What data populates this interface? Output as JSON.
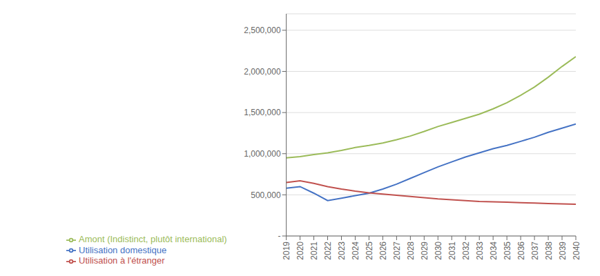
{
  "chart_data": {
    "type": "line",
    "x": [
      2019,
      2020,
      2021,
      2022,
      2023,
      2024,
      2025,
      2026,
      2027,
      2028,
      2029,
      2030,
      2031,
      2032,
      2033,
      2034,
      2035,
      2036,
      2037,
      2038,
      2039,
      2040
    ],
    "series": [
      {
        "name": "Utilisation domestique",
        "color": "#4472C4",
        "values": [
          580000,
          600000,
          520000,
          430000,
          460000,
          490000,
          520000,
          570000,
          630000,
          700000,
          770000,
          840000,
          900000,
          960000,
          1010000,
          1060000,
          1100000,
          1150000,
          1200000,
          1260000,
          1310000,
          1360000
        ]
      },
      {
        "name": "Utilisation à l'étranger",
        "color": "#C0504D",
        "values": [
          650000,
          670000,
          640000,
          600000,
          570000,
          545000,
          525000,
          510000,
          495000,
          480000,
          465000,
          450000,
          440000,
          430000,
          420000,
          415000,
          410000,
          405000,
          400000,
          395000,
          390000,
          385000
        ]
      },
      {
        "name": "Amont (Indistinct, plutôt international)",
        "color": "#9BBB59",
        "values": [
          950000,
          965000,
          990000,
          1010000,
          1040000,
          1075000,
          1100000,
          1130000,
          1170000,
          1215000,
          1270000,
          1330000,
          1380000,
          1430000,
          1480000,
          1545000,
          1620000,
          1710000,
          1810000,
          1930000,
          2060000,
          2180000
        ]
      }
    ],
    "xlim": [
      2019,
      2040
    ],
    "xticks": [
      2019,
      2020,
      2021,
      2022,
      2023,
      2024,
      2025,
      2026,
      2027,
      2028,
      2029,
      2030,
      2031,
      2032,
      2033,
      2034,
      2035,
      2036,
      2037,
      2038,
      2039,
      2040
    ],
    "ylim": [
      0,
      2700000
    ],
    "yticks": [
      {
        "value": 0,
        "label": "-"
      },
      {
        "value": 500000,
        "label": "500,000"
      },
      {
        "value": 1000000,
        "label": "1,000,000"
      },
      {
        "value": 1500000,
        "label": "1,500,000"
      },
      {
        "value": 2000000,
        "label": "2,000,000"
      },
      {
        "value": 2500000,
        "label": "2,500,000"
      }
    ],
    "grid": "y",
    "legend": "lower left"
  }
}
